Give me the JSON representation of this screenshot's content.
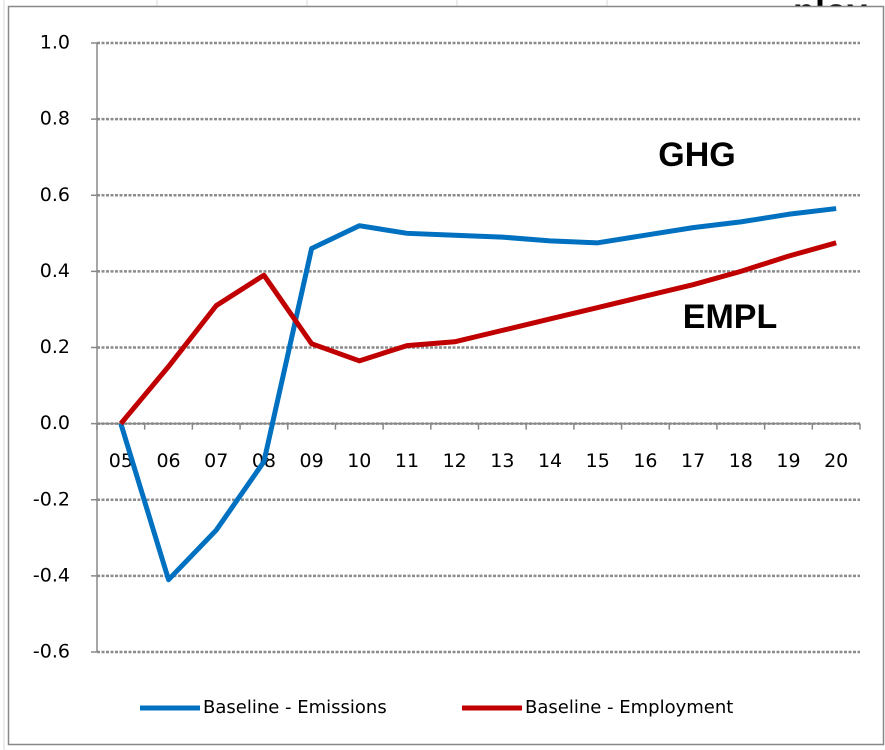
{
  "chart_data": {
    "type": "line",
    "title": "ploy",
    "categories": [
      "05",
      "06",
      "07",
      "08",
      "09",
      "10",
      "11",
      "12",
      "13",
      "14",
      "15",
      "16",
      "17",
      "18",
      "19",
      "20"
    ],
    "series": [
      {
        "name": "Baseline - Emissions",
        "color": "#0070c0",
        "values": [
          0,
          -0.41,
          -0.28,
          -0.1,
          0.46,
          0.52,
          0.5,
          0.495,
          0.49,
          0.48,
          0.475,
          0.495,
          0.515,
          0.53,
          0.55,
          0.565
        ]
      },
      {
        "name": "Baseline - Employment",
        "color": "#c00000",
        "values": [
          0,
          0.15,
          0.31,
          0.39,
          0.21,
          0.165,
          0.205,
          0.215,
          0.245,
          0.275,
          0.305,
          0.335,
          0.365,
          0.4,
          0.44,
          0.475
        ]
      }
    ],
    "annotations": [
      {
        "text": "GHG",
        "color": "#3b3b9b"
      },
      {
        "text": "EMPL",
        "color": "#c00000"
      }
    ],
    "ylim": [
      -0.6,
      1.0
    ],
    "yticks": [
      {
        "value": 1.0,
        "label": "1.0"
      },
      0.8,
      0.6,
      0.4,
      0.2,
      {
        "value": 0.0,
        "label": "0.0"
      },
      -0.2,
      -0.4,
      -0.6
    ],
    "grid": true,
    "legend": "bottom"
  }
}
